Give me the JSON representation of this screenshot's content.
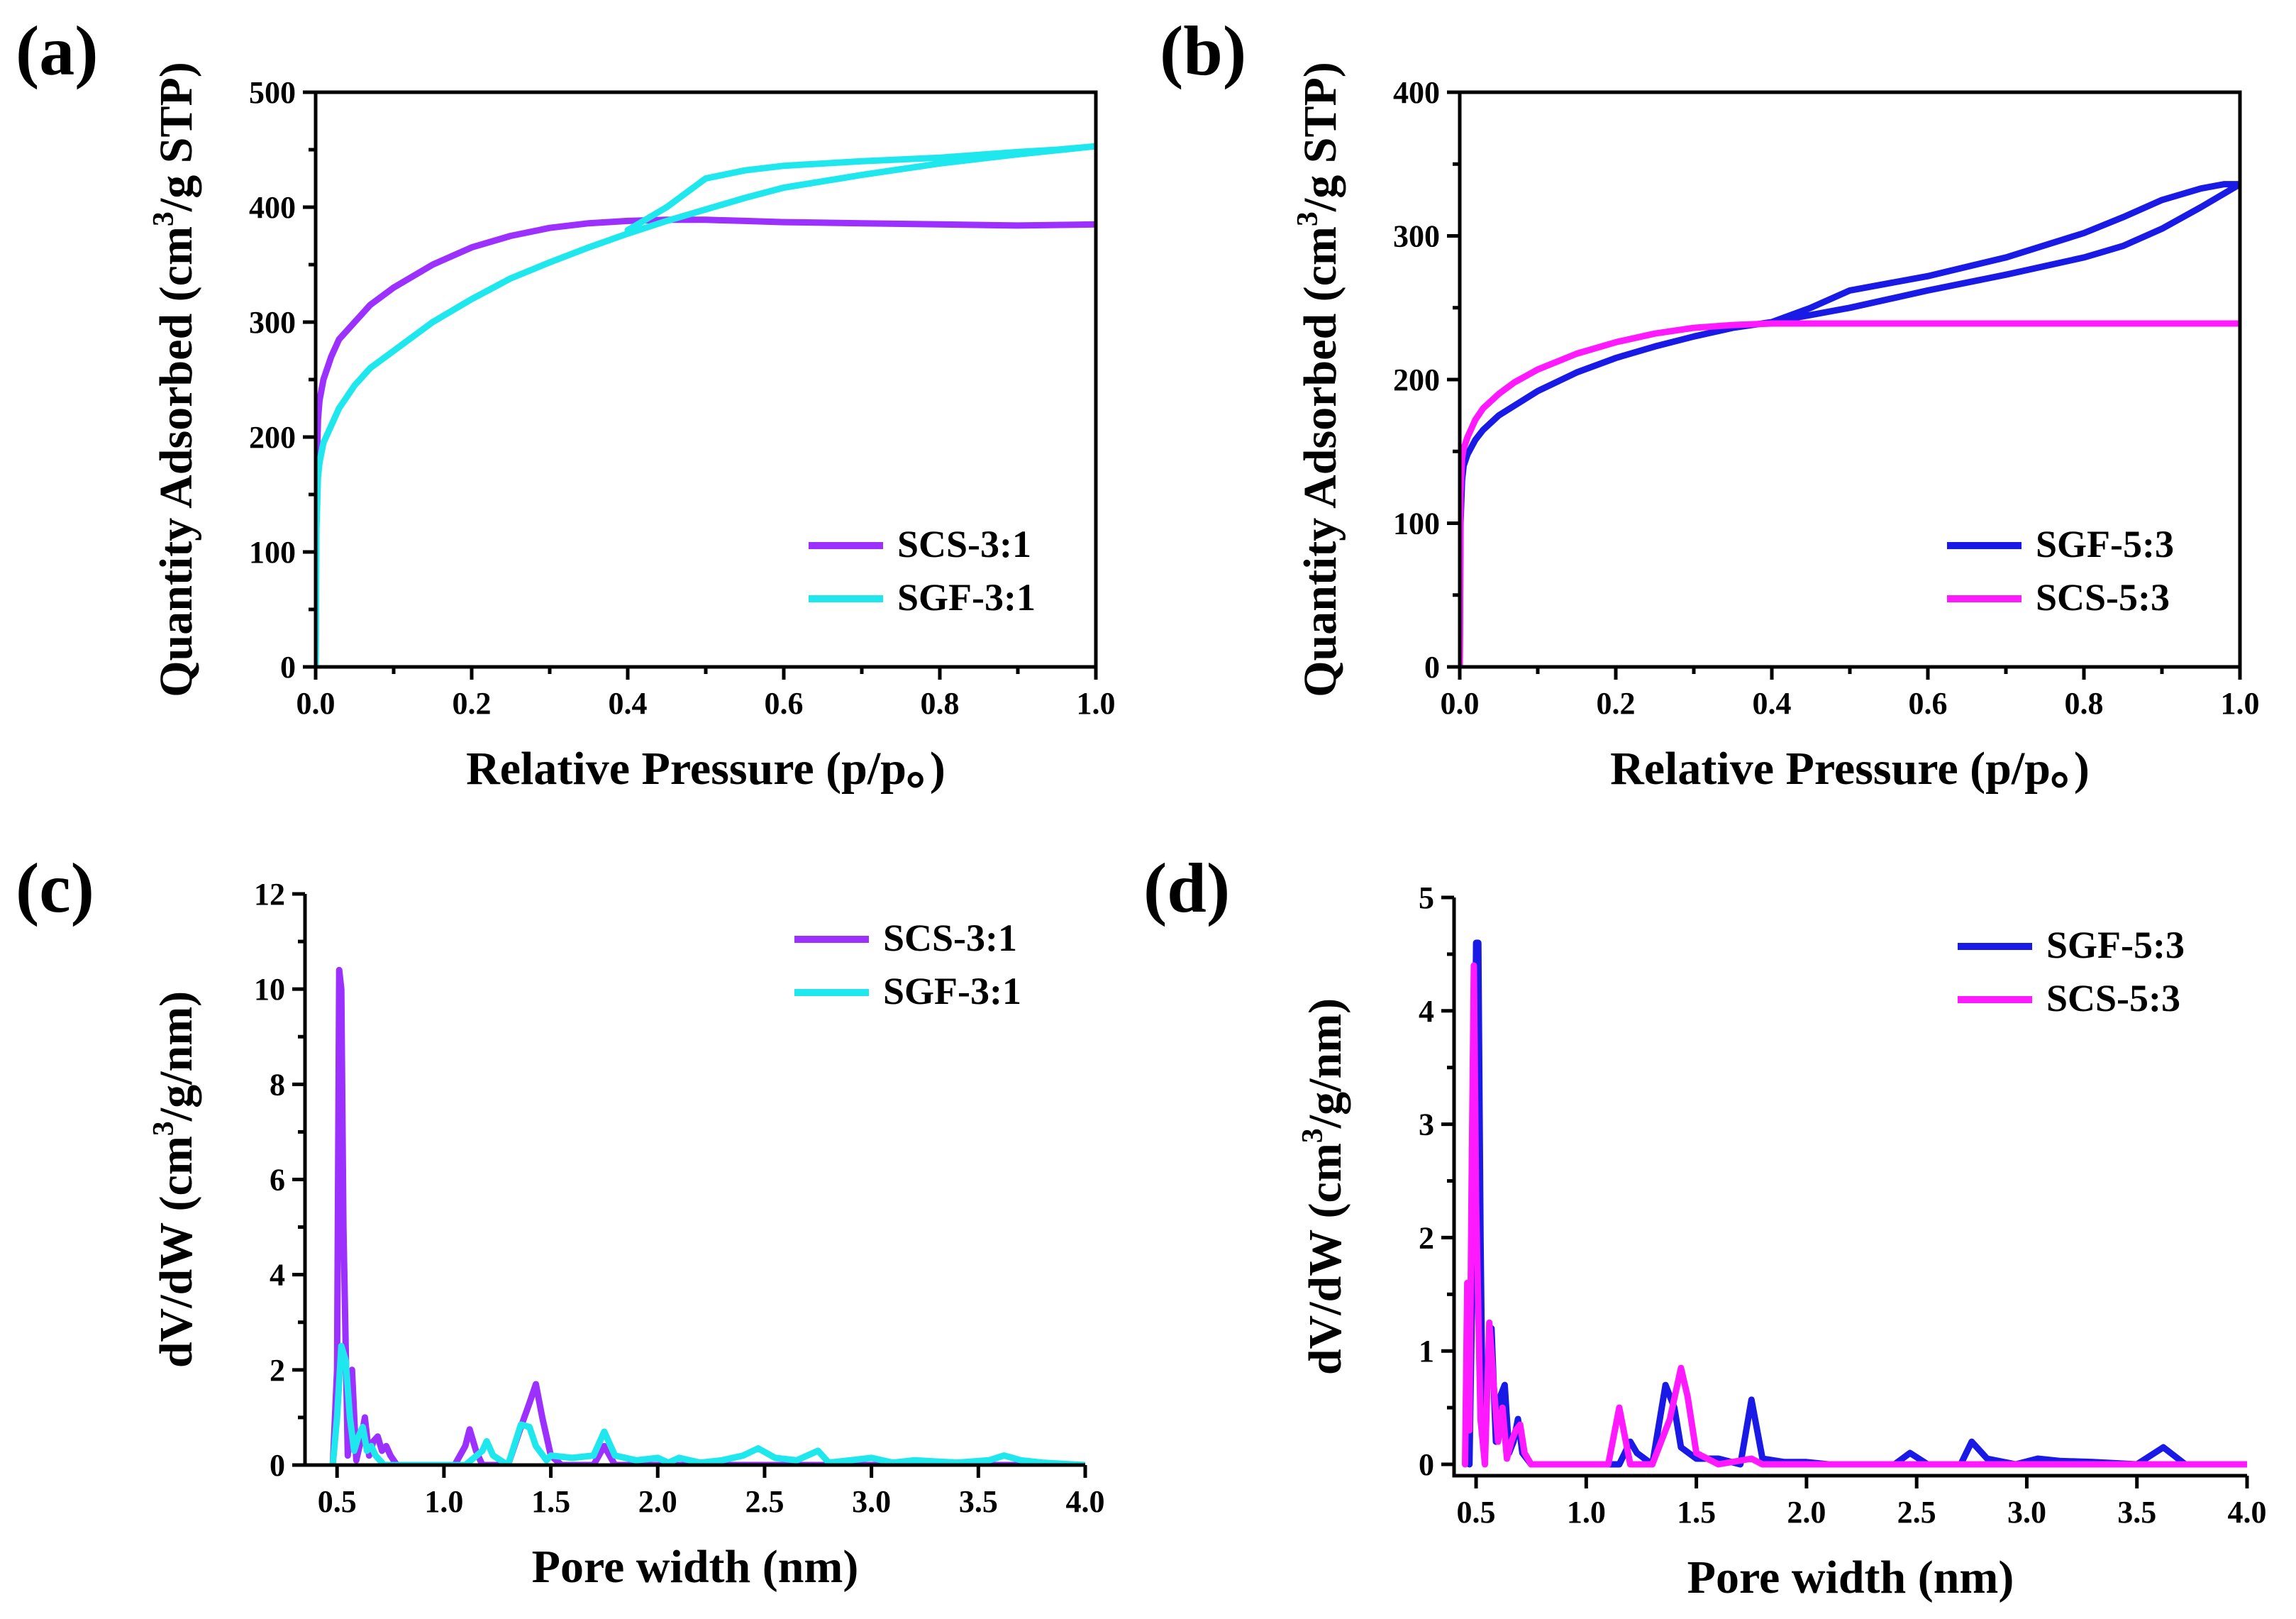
{
  "chart_data": [
    {
      "panel_label": "(a)",
      "type": "line",
      "xlabel": "Relative Pressure (p/p。)",
      "ylabel_parts": [
        "Quantity Adsorbed (cm",
        "3",
        "/g STP)"
      ],
      "xlim": [
        0,
        1.0
      ],
      "ylim": [
        0,
        500
      ],
      "xticks": [
        "0.0",
        "0.2",
        "0.4",
        "0.6",
        "0.8",
        "1.0"
      ],
      "yticks": [
        "0",
        "100",
        "200",
        "300",
        "400",
        "500"
      ],
      "legend_position": "bottom-right",
      "series": [
        {
          "name": "SCS-3:1",
          "color": "#9b30ff",
          "x": [
            0.0,
            0.001,
            0.003,
            0.005,
            0.01,
            0.02,
            0.03,
            0.05,
            0.07,
            0.1,
            0.15,
            0.2,
            0.25,
            0.3,
            0.35,
            0.4,
            0.45,
            0.5,
            0.55,
            0.6,
            0.7,
            0.8,
            0.9,
            1.0
          ],
          "values": [
            5,
            160,
            215,
            232,
            250,
            270,
            285,
            300,
            315,
            330,
            350,
            365,
            375,
            382,
            386,
            388,
            389,
            389,
            388,
            387,
            386,
            385,
            384,
            385
          ]
        },
        {
          "name": "SGF-3:1",
          "color": "#1ee8ee",
          "x": [
            0.0,
            0.001,
            0.003,
            0.005,
            0.01,
            0.02,
            0.03,
            0.05,
            0.07,
            0.1,
            0.15,
            0.2,
            0.25,
            0.3,
            0.35,
            0.4,
            0.45,
            0.5,
            0.55,
            0.6,
            0.7,
            0.8,
            0.9,
            1.0,
            0.95,
            0.9,
            0.8,
            0.7,
            0.6,
            0.55,
            0.5,
            0.45,
            0.4
          ],
          "values": [
            0,
            120,
            165,
            178,
            195,
            210,
            225,
            245,
            260,
            275,
            300,
            320,
            338,
            352,
            365,
            377,
            388,
            398,
            408,
            417,
            428,
            438,
            446,
            453,
            450,
            448,
            443,
            440,
            436,
            432,
            425,
            400,
            380
          ]
        }
      ]
    },
    {
      "panel_label": "(b)",
      "type": "line",
      "xlabel": "Relative Pressure (p/p。)",
      "ylabel_parts": [
        "Quantity Adsorbed (cm",
        "3",
        "/g STP)"
      ],
      "xlim": [
        0,
        1.0
      ],
      "ylim": [
        0,
        400
      ],
      "xticks": [
        "0.0",
        "0.2",
        "0.4",
        "0.6",
        "0.8",
        "1.0"
      ],
      "yticks": [
        "0",
        "100",
        "200",
        "300",
        "400"
      ],
      "legend_position": "bottom-right",
      "series": [
        {
          "name": "SGF-5:3",
          "color": "#1a1ae6",
          "x": [
            0.0,
            0.001,
            0.003,
            0.005,
            0.01,
            0.02,
            0.03,
            0.05,
            0.1,
            0.15,
            0.2,
            0.25,
            0.3,
            0.35,
            0.4,
            0.45,
            0.5,
            0.6,
            0.7,
            0.8,
            0.85,
            0.9,
            0.95,
            1.0,
            0.98,
            0.95,
            0.9,
            0.85,
            0.8,
            0.7,
            0.6,
            0.5,
            0.45,
            0.4
          ],
          "values": [
            0,
            100,
            130,
            140,
            148,
            158,
            165,
            175,
            192,
            205,
            215,
            223,
            230,
            236,
            240,
            245,
            250,
            262,
            273,
            285,
            293,
            305,
            320,
            336,
            336,
            333,
            325,
            313,
            302,
            285,
            272,
            262,
            250,
            240
          ]
        },
        {
          "name": "SCS-5:3",
          "color": "#ff19ff",
          "x": [
            0.0,
            0.001,
            0.003,
            0.005,
            0.01,
            0.02,
            0.03,
            0.05,
            0.07,
            0.1,
            0.15,
            0.2,
            0.25,
            0.3,
            0.35,
            0.4,
            0.5,
            0.6,
            0.7,
            0.8,
            0.9,
            1.0
          ],
          "values": [
            0,
            120,
            145,
            152,
            160,
            172,
            180,
            190,
            198,
            207,
            218,
            226,
            232,
            236,
            238,
            239,
            239,
            239,
            239,
            239,
            239,
            239
          ]
        }
      ]
    },
    {
      "panel_label": "(c)",
      "type": "line",
      "xlabel": "Pore width (nm)",
      "ylabel_parts": [
        "dV/dW (cm",
        "3",
        "/g/nm)"
      ],
      "xlim": [
        0.35,
        4.0
      ],
      "ylim": [
        0,
        12
      ],
      "xticks": [
        "0.5",
        "1.0",
        "1.5",
        "2.0",
        "2.5",
        "3.0",
        "3.5",
        "4.0"
      ],
      "xtick_values": [
        0.5,
        1.0,
        1.5,
        2.0,
        2.5,
        3.0,
        3.5,
        4.0
      ],
      "yticks": [
        "0",
        "2",
        "4",
        "6",
        "8",
        "10",
        "12"
      ],
      "legend_position": "top-right",
      "series": [
        {
          "name": "SCS-3:1",
          "color": "#9b30ff",
          "x": [
            0.48,
            0.5,
            0.51,
            0.52,
            0.53,
            0.55,
            0.57,
            0.59,
            0.61,
            0.63,
            0.65,
            0.67,
            0.69,
            0.71,
            0.73,
            0.75,
            0.78,
            1.05,
            1.1,
            1.12,
            1.15,
            1.18,
            1.3,
            1.36,
            1.4,
            1.43,
            1.46,
            1.5,
            1.55,
            1.7,
            1.75,
            1.8,
            1.9,
            4.0
          ],
          "values": [
            0,
            2,
            10.4,
            10,
            5,
            0.2,
            2.0,
            0.1,
            0.5,
            1.0,
            0.2,
            0.5,
            0.6,
            0.3,
            0.4,
            0.2,
            0,
            0,
            0.4,
            0.75,
            0.3,
            0,
            0,
            0.8,
            1.3,
            1.7,
            1.0,
            0.2,
            0,
            0,
            0.4,
            0,
            0,
            0
          ]
        },
        {
          "name": "SGF-3:1",
          "color": "#1ee8ee",
          "x": [
            0.48,
            0.5,
            0.52,
            0.54,
            0.56,
            0.58,
            0.6,
            0.62,
            0.64,
            0.66,
            0.68,
            0.72,
            1.1,
            1.18,
            1.2,
            1.23,
            1.3,
            1.36,
            1.4,
            1.43,
            1.48,
            1.5,
            1.6,
            1.7,
            1.75,
            1.8,
            1.9,
            2.0,
            2.05,
            2.1,
            2.2,
            2.3,
            2.4,
            2.47,
            2.55,
            2.65,
            2.7,
            2.75,
            2.8,
            2.9,
            3.0,
            3.1,
            3.2,
            3.4,
            3.55,
            3.62,
            3.7,
            3.8,
            4.0
          ],
          "values": [
            0,
            1.0,
            2.5,
            2.2,
            1.0,
            0.3,
            0.6,
            0.8,
            0.3,
            0.4,
            0.2,
            0,
            0,
            0.3,
            0.5,
            0.2,
            0,
            0.85,
            0.8,
            0.4,
            0.1,
            0.2,
            0.15,
            0.2,
            0.7,
            0.2,
            0.1,
            0.15,
            0.05,
            0.15,
            0.05,
            0.1,
            0.2,
            0.35,
            0.15,
            0.1,
            0.2,
            0.3,
            0.05,
            0.1,
            0.15,
            0.05,
            0.1,
            0.05,
            0.1,
            0.2,
            0.1,
            0.05,
            0
          ]
        }
      ]
    },
    {
      "panel_label": "(d)",
      "type": "line",
      "xlabel": "Pore width (nm)",
      "ylabel_parts": [
        "dV/dW (cm",
        "3",
        "/g/nm)"
      ],
      "xlim": [
        0.4,
        4.0
      ],
      "ylim": [
        -0.1,
        5
      ],
      "xticks": [
        "0.5",
        "1.0",
        "1.5",
        "2.0",
        "2.5",
        "3.0",
        "3.5",
        "4.0"
      ],
      "xtick_values": [
        0.5,
        1.0,
        1.5,
        2.0,
        2.5,
        3.0,
        3.5,
        4.0
      ],
      "yticks": [
        "0",
        "1",
        "2",
        "3",
        "4",
        "5"
      ],
      "legend_position": "top-right",
      "series": [
        {
          "name": "SGF-5:3",
          "color": "#1a1ae6",
          "x": [
            0.47,
            0.49,
            0.5,
            0.51,
            0.52,
            0.53,
            0.55,
            0.57,
            0.59,
            0.61,
            0.63,
            0.65,
            0.67,
            0.69,
            0.71,
            0.75,
            1.15,
            1.2,
            1.23,
            1.3,
            1.36,
            1.4,
            1.43,
            1.5,
            1.6,
            1.7,
            1.75,
            1.8,
            1.9,
            2.0,
            2.1,
            2.4,
            2.47,
            2.55,
            2.7,
            2.75,
            2.82,
            2.95,
            3.05,
            3.15,
            3.3,
            3.5,
            3.62,
            3.72,
            4.0
          ],
          "values": [
            0,
            2.5,
            4.6,
            4.6,
            2.0,
            0.3,
            0.8,
            1.2,
            0.2,
            0.6,
            0.7,
            0.1,
            0.2,
            0.4,
            0.1,
            0,
            0,
            0.2,
            0.1,
            0,
            0.7,
            0.5,
            0.15,
            0.05,
            0.05,
            0,
            0.57,
            0.05,
            0.02,
            0.02,
            0,
            0,
            0.1,
            0,
            0,
            0.2,
            0.05,
            0,
            0.05,
            0.03,
            0.02,
            0,
            0.15,
            0,
            0
          ]
        },
        {
          "name": "SCS-5:3",
          "color": "#ff19ff",
          "x": [
            0.45,
            0.46,
            0.47,
            0.48,
            0.49,
            0.5,
            0.52,
            0.54,
            0.56,
            0.58,
            0.6,
            0.62,
            0.64,
            0.66,
            0.68,
            0.7,
            0.72,
            0.75,
            1.1,
            1.15,
            1.2,
            1.3,
            1.38,
            1.43,
            1.46,
            1.5,
            1.6,
            1.75,
            1.8,
            4.0
          ],
          "values": [
            0,
            1.6,
            0.3,
            2.5,
            4.4,
            2.3,
            0.4,
            0,
            1.25,
            0.7,
            0.2,
            0.5,
            0.05,
            0.2,
            0.3,
            0.35,
            0.1,
            0,
            0,
            0.5,
            0,
            0,
            0.4,
            0.85,
            0.6,
            0.1,
            0,
            0.05,
            0,
            0
          ]
        }
      ]
    }
  ]
}
